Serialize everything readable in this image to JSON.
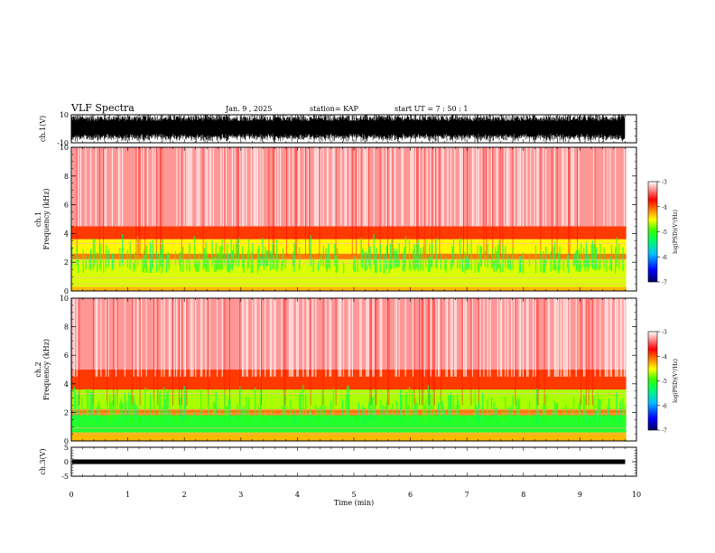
{
  "header": {
    "title": "VLF Spectra",
    "date": "Jan. 9 , 2025",
    "station": "station= KAP",
    "start": "start UT = 7 : 50 : 1"
  },
  "chart_data": [
    {
      "type": "line",
      "panel": "ch1-waveform",
      "ylabel": "ch.1(V)",
      "ylim": [
        -10,
        10
      ],
      "y_ticks": [
        "10",
        "-10"
      ],
      "x_range_min": [
        0,
        9.8
      ],
      "description_values": {
        "amplitude_min": -10,
        "amplitude_max": 10
      }
    },
    {
      "type": "heatmap",
      "panel": "ch1-spectrogram",
      "ylabel": "ch.1\nFrequency (kHz)",
      "ylabel_lines": [
        "ch.1",
        "Frequency (kHz)"
      ],
      "ylim": [
        0,
        10
      ],
      "y_ticks": [
        "0",
        "2",
        "4",
        "6",
        "8",
        "10"
      ],
      "colorbar": {
        "label": "log(PSD)(V²/Hz)",
        "range": [
          -7,
          -3
        ],
        "ticks": [
          "-3",
          "-4",
          "-5",
          "-6",
          "-7"
        ],
        "colors": [
          "#000080",
          "#0000ff",
          "#00c0ff",
          "#00ff80",
          "#00ff00",
          "#c0ff00",
          "#ffff00",
          "#ff8000",
          "#ff0000",
          "#ffffff"
        ]
      },
      "bands_khz": [
        {
          "from": 0.0,
          "to": 0.3,
          "level": -4.3
        },
        {
          "from": 0.3,
          "to": 1.2,
          "level": -4.6
        },
        {
          "from": 1.2,
          "to": 2.2,
          "level": -4.6
        },
        {
          "from": 2.2,
          "to": 2.6,
          "level": -4.1
        },
        {
          "from": 2.6,
          "to": 3.6,
          "level": -4.5
        },
        {
          "from": 3.6,
          "to": 4.5,
          "level": -3.9
        },
        {
          "from": 4.5,
          "to": 10.0,
          "level": -3.3
        }
      ]
    },
    {
      "type": "heatmap",
      "panel": "ch2-spectrogram",
      "ylabel_lines": [
        "ch.2",
        "Frequency (kHz)"
      ],
      "ylim": [
        0,
        10
      ],
      "y_ticks": [
        "0",
        "2",
        "4",
        "6",
        "8",
        "10"
      ],
      "colorbar": {
        "label": "log(PSD)(V²/Hz)",
        "range": [
          -7,
          -3
        ],
        "ticks": [
          "-3",
          "-4",
          "-5",
          "-6",
          "-7"
        ]
      },
      "bands_khz": [
        {
          "from": 0.0,
          "to": 0.6,
          "level": -4.3
        },
        {
          "from": 0.6,
          "to": 1.8,
          "level": -5.1
        },
        {
          "from": 1.8,
          "to": 2.2,
          "level": -4.1
        },
        {
          "from": 2.2,
          "to": 3.6,
          "level": -4.7
        },
        {
          "from": 3.6,
          "to": 5.0,
          "level": -3.9
        },
        {
          "from": 5.0,
          "to": 10.0,
          "level": -3.3
        }
      ]
    },
    {
      "type": "line",
      "panel": "ch3-waveform",
      "ylabel": "ch.3(V)",
      "ylim": [
        -5,
        5
      ],
      "y_ticks": [
        "5",
        "0",
        "-5"
      ],
      "level": 0,
      "x_range_min": [
        0,
        9.8
      ]
    }
  ],
  "xaxis": {
    "label": "Time (min)",
    "range": [
      0,
      10
    ],
    "ticks": [
      "0",
      "1",
      "2",
      "3",
      "4",
      "5",
      "6",
      "7",
      "8",
      "9",
      "10"
    ]
  }
}
